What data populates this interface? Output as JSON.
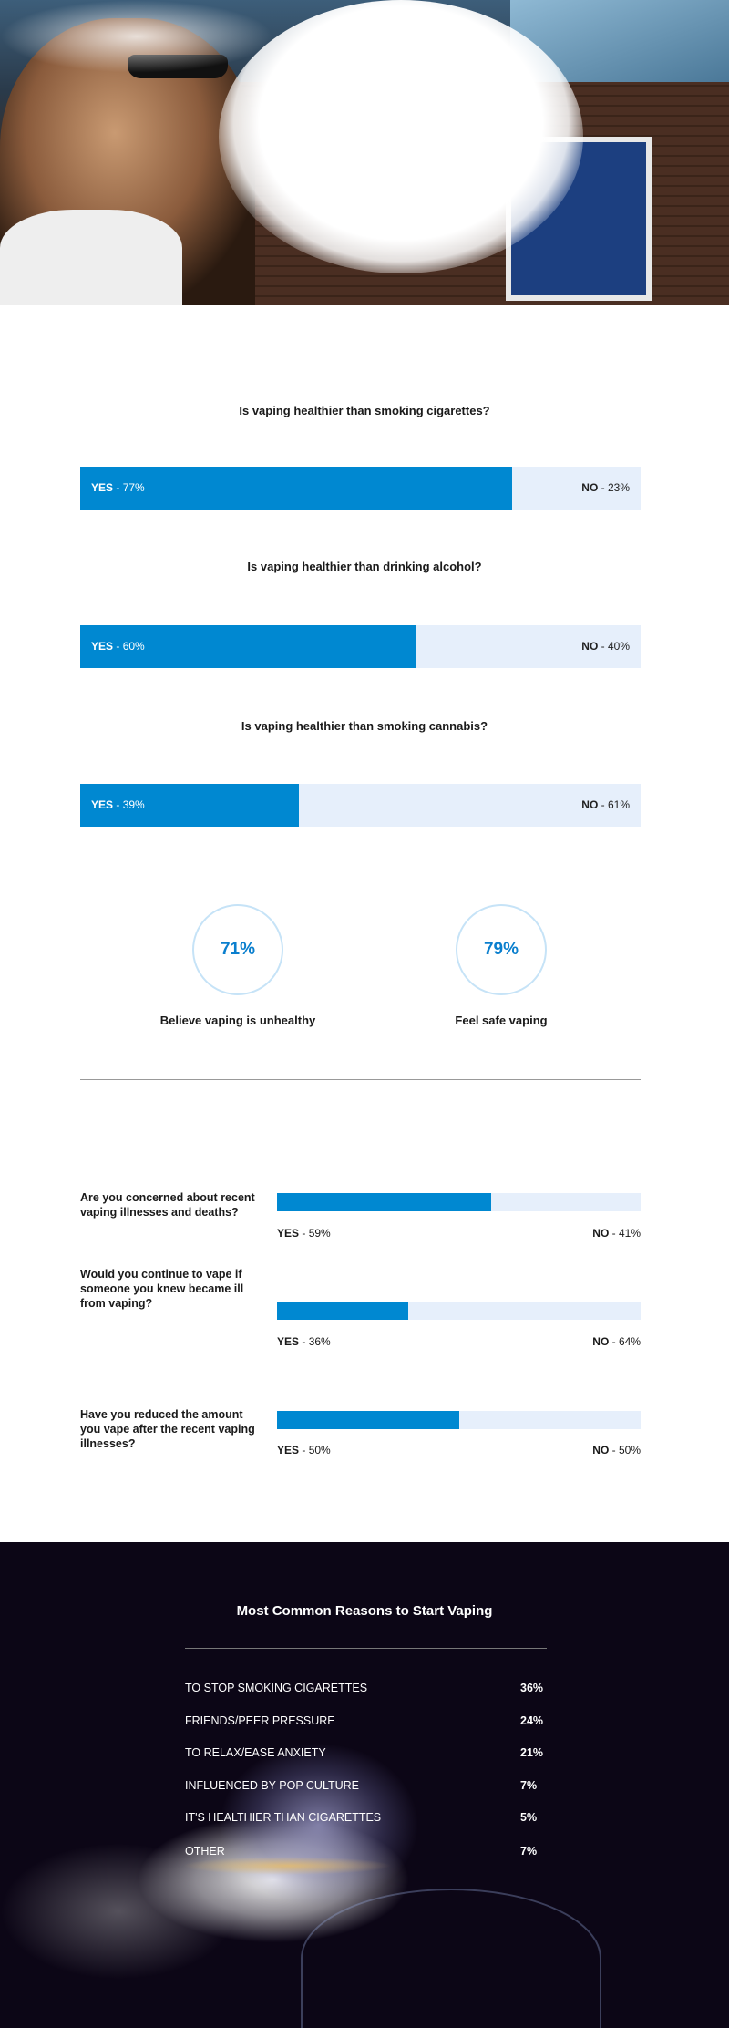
{
  "hero": {
    "image": "man-exhaling-vape-cloud-photo"
  },
  "comparisons": [
    {
      "question": "Is vaping healthier than smoking cigarettes?",
      "yes_label": "YES",
      "yes_value": "- 77%",
      "no_label": "NO",
      "no_value": "- 23%",
      "yes_pct": 77
    },
    {
      "question": "Is vaping healthier than drinking alcohol?",
      "yes_label": "YES",
      "yes_value": "- 60%",
      "no_label": "NO",
      "no_value": "- 40%",
      "yes_pct": 60
    },
    {
      "question": "Is vaping healthier than smoking cannabis?",
      "yes_label": "YES",
      "yes_value": "- 39%",
      "no_label": "NO",
      "no_value": "- 61%",
      "yes_pct": 39
    }
  ],
  "stats": [
    {
      "value": "71%",
      "label": "Believe vaping is unhealthy"
    },
    {
      "value": "79%",
      "label": "Feel safe vaping"
    }
  ],
  "concerns": [
    {
      "question": "Are you concerned about recent vaping illnesses and deaths?",
      "yes_label": "YES",
      "yes_value": "- 59%",
      "no_label": "NO",
      "no_value": "- 41%",
      "yes_pct": 59
    },
    {
      "question": "Would you continue to vape if someone you knew became ill from vaping?",
      "yes_label": "YES",
      "yes_value": "- 36%",
      "no_label": "NO",
      "no_value": "- 64%",
      "yes_pct": 36
    },
    {
      "question": "Have you reduced the amount you vape after the recent vaping illnesses?",
      "yes_label": "YES",
      "yes_value": "- 50%",
      "no_label": "NO",
      "no_value": "- 50%",
      "yes_pct": 50
    }
  ],
  "reasons": {
    "title": "Most Common Reasons to Start Vaping",
    "items": [
      {
        "label": "TO STOP SMOKING CIGARETTES",
        "value": "36%"
      },
      {
        "label": "FRIENDS/PEER PRESSURE",
        "value": "24%"
      },
      {
        "label": "TO RELAX/EASE ANXIETY",
        "value": "21%"
      },
      {
        "label": "INFLUENCED BY POP CULTURE",
        "value": "7%"
      },
      {
        "label": "IT'S HEALTHIER THAN CIGARETTES",
        "value": "5%"
      },
      {
        "label": "OTHER",
        "value": "7%"
      }
    ]
  },
  "colors": {
    "accent": "#0088d1",
    "bar_bg": "#e6effb",
    "circle_border": "#c6e3f7",
    "dark_bg": "#0c0616"
  }
}
